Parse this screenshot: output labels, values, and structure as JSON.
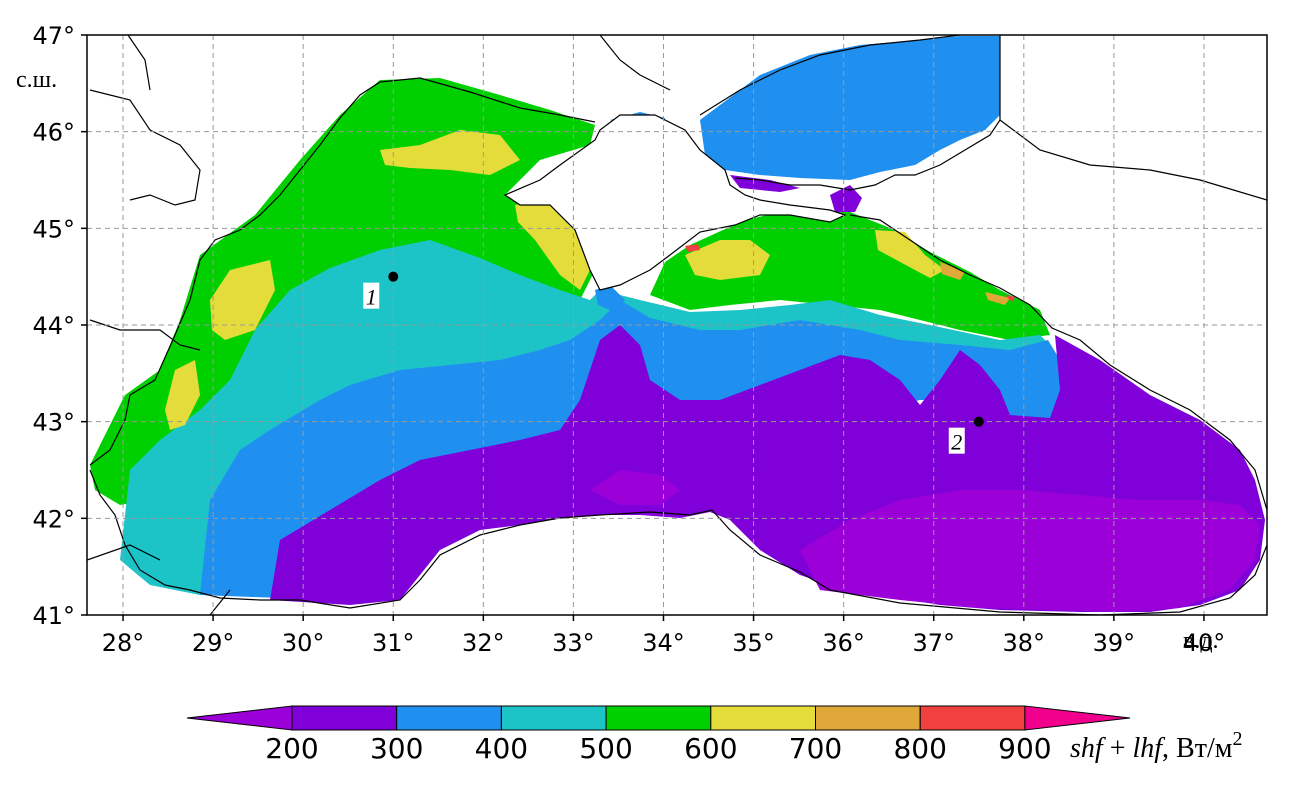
{
  "map": {
    "lat_ticks": [
      "47°",
      "46°",
      "45°",
      "44°",
      "43°",
      "42°",
      "41°"
    ],
    "lon_ticks": [
      "28°",
      "29°",
      "30°",
      "31°",
      "32°",
      "33°",
      "34°",
      "35°",
      "36°",
      "37°",
      "38°",
      "39°",
      "40°"
    ],
    "lat_unit": "с.ш.",
    "lon_unit": "в.д.",
    "lat_range": [
      41,
      47
    ],
    "lon_range": [
      27.6,
      40.7
    ],
    "grid": true,
    "points": [
      {
        "label": "1",
        "lon": 31.0,
        "lat": 44.5
      },
      {
        "label": "2",
        "lon": 37.5,
        "lat": 43.0
      }
    ]
  },
  "colorbar": {
    "ticks": [
      "200",
      "300",
      "400",
      "500",
      "600",
      "700",
      "800",
      "900"
    ],
    "colors": [
      "#9b00d8",
      "#7f00d8",
      "#1f8ff0",
      "#1cc4c8",
      "#00d000",
      "#e4dc3a",
      "#e0a838",
      "#f04040",
      "#f0008c"
    ],
    "title_var1": "shf",
    "title_op": " + ",
    "title_var2": "lhf",
    "title_unit": ", Вт/м",
    "title_sup": "2"
  }
}
